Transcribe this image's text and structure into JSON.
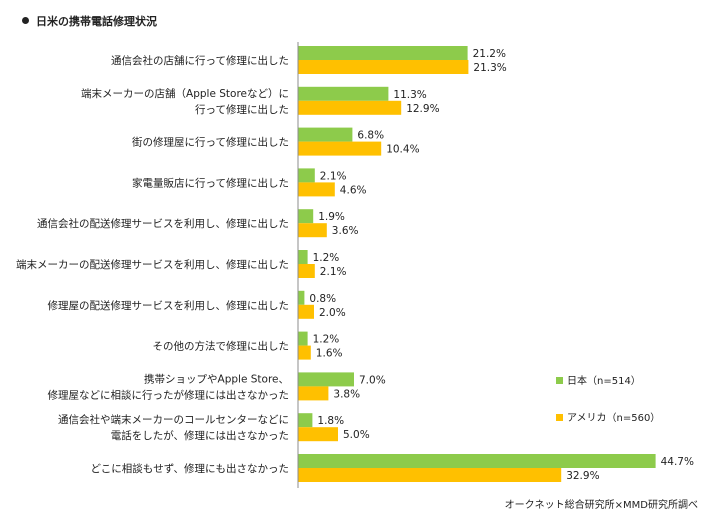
{
  "colors": {
    "japan": "#8DCB4B",
    "usa": "#FFC000",
    "axis": "#8C8C8C"
  },
  "chart_data": {
    "type": "bar",
    "orientation": "horizontal",
    "title": "日米の携帯電話修理状況",
    "source": "オークネット総合研究所×MMD研究所調べ",
    "categories": [
      [
        "通信会社の店舗に行って修理に出した"
      ],
      [
        "端末メーカーの店舗（Apple Storeなど）に",
        "行って修理に出した"
      ],
      [
        "街の修理屋に行って修理に出した"
      ],
      [
        "家電量販店に行って修理に出した"
      ],
      [
        "通信会社の配送修理サービスを利用し、修理に出した"
      ],
      [
        "端末メーカーの配送修理サービスを利用し、修理に出した"
      ],
      [
        "修理屋の配送修理サービスを利用し、修理に出した"
      ],
      [
        "その他の方法で修理に出した"
      ],
      [
        "携帯ショップやApple Store、",
        "修理屋などに相談に行ったが修理には出さなかった"
      ],
      [
        "通信会社や端末メーカーのコールセンターなどに",
        "電話をしたが、修理には出さなかった"
      ],
      [
        "どこに相談もせず、修理にも出さなかった"
      ]
    ],
    "series": [
      {
        "name": "日本（n=514）",
        "values": [
          21.2,
          11.3,
          6.8,
          2.1,
          1.9,
          1.2,
          0.8,
          1.2,
          7.0,
          1.8,
          44.7
        ]
      },
      {
        "name": "アメリカ（n=560）",
        "values": [
          21.3,
          12.9,
          10.4,
          4.6,
          3.6,
          2.1,
          2.0,
          1.6,
          3.8,
          5.0,
          32.9
        ]
      }
    ],
    "unit": "%",
    "xlim": [
      0,
      50
    ],
    "grid": false,
    "legend": "right"
  }
}
